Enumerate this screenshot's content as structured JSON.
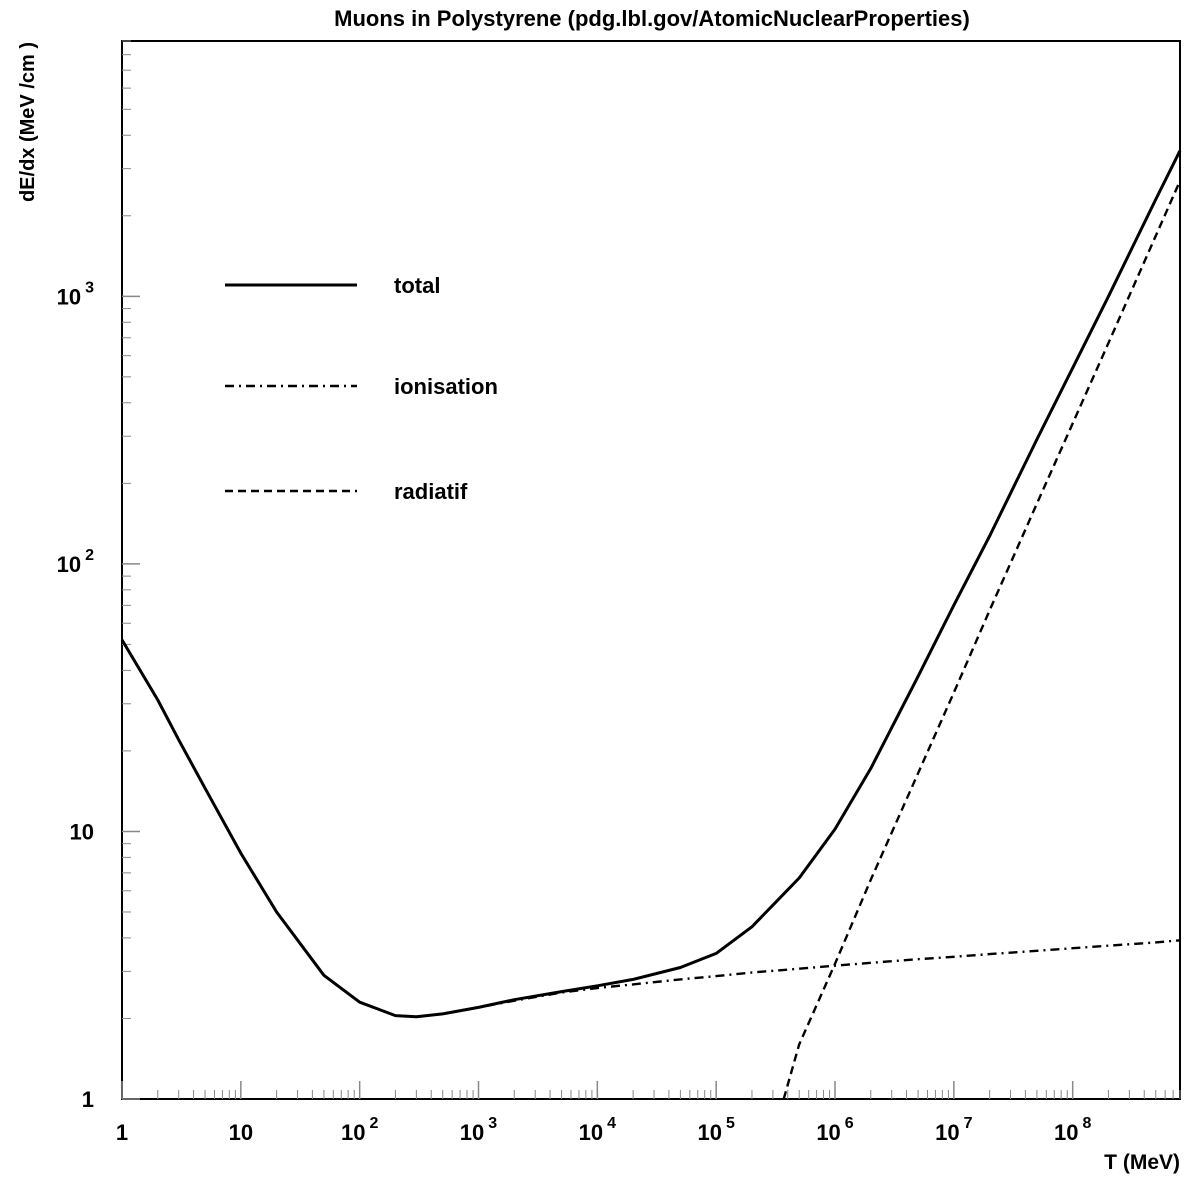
{
  "chart_data": {
    "type": "line",
    "title": "Muons in Polystyrene (pdg.lbl.gov/AtomicNuclearProperties)",
    "xlabel": "T (MeV)",
    "ylabel": "dE/dx (MeV /cm )",
    "xscale": "log",
    "yscale": "log",
    "xlim": [
      1,
      800000000
    ],
    "ylim": [
      1,
      9000
    ],
    "grid": false,
    "legend_position": "upper-left",
    "x_ticks": [
      {
        "base": "1",
        "exp": ""
      },
      {
        "base": "10",
        "exp": ""
      },
      {
        "base": "10",
        "exp": "2"
      },
      {
        "base": "10",
        "exp": "3"
      },
      {
        "base": "10",
        "exp": "4"
      },
      {
        "base": "10",
        "exp": "5"
      },
      {
        "base": "10",
        "exp": "6"
      },
      {
        "base": "10",
        "exp": "7"
      },
      {
        "base": "10",
        "exp": "8"
      }
    ],
    "y_ticks": [
      {
        "base": "1",
        "exp": ""
      },
      {
        "base": "10",
        "exp": ""
      },
      {
        "base": "10",
        "exp": "2"
      },
      {
        "base": "10",
        "exp": "3"
      }
    ],
    "series": [
      {
        "name": "total",
        "style": "solid",
        "x": [
          1,
          2,
          3,
          5,
          10,
          20,
          50,
          100,
          200,
          300,
          500,
          1000,
          2000,
          5000,
          10000,
          20000,
          50000,
          100000,
          200000,
          500000,
          1000000,
          2000000,
          5000000,
          10000000,
          20000000,
          50000000,
          100000000,
          200000000,
          500000000,
          800000000
        ],
        "y": [
          52,
          31,
          22,
          14.5,
          8.3,
          5.0,
          2.9,
          2.3,
          2.05,
          2.03,
          2.08,
          2.2,
          2.35,
          2.52,
          2.65,
          2.8,
          3.1,
          3.5,
          4.4,
          6.7,
          10.2,
          17.2,
          38,
          70,
          127,
          292,
          540,
          1000,
          2300,
          3500
        ]
      },
      {
        "name": "ionisation",
        "style": "dash-dot",
        "x": [
          1,
          2,
          3,
          5,
          10,
          20,
          50,
          100,
          200,
          300,
          500,
          1000,
          2000,
          5000,
          10000,
          20000,
          50000,
          100000,
          200000,
          500000,
          1000000,
          2000000,
          5000000,
          10000000,
          20000000,
          50000000,
          100000000,
          200000000,
          500000000,
          800000000
        ],
        "y": [
          52,
          31,
          22,
          14.5,
          8.3,
          5.0,
          2.9,
          2.3,
          2.05,
          2.03,
          2.08,
          2.2,
          2.33,
          2.5,
          2.6,
          2.68,
          2.8,
          2.88,
          2.97,
          3.07,
          3.15,
          3.23,
          3.33,
          3.4,
          3.48,
          3.58,
          3.66,
          3.74,
          3.85,
          3.92
        ]
      },
      {
        "name": "radiatif",
        "style": "dashed",
        "x": [
          370000,
          500000,
          1000000,
          2000000,
          5000000,
          10000000,
          20000000,
          50000000,
          100000000,
          200000000,
          500000000,
          800000000
        ],
        "y": [
          1,
          1.6,
          3.2,
          6.6,
          16.5,
          33,
          67,
          168,
          335,
          670,
          1680,
          2700
        ]
      }
    ]
  }
}
